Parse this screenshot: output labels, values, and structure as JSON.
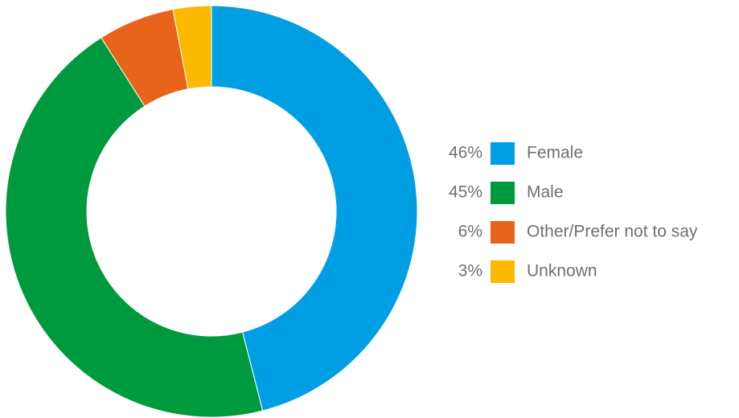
{
  "chart_data": {
    "type": "donut",
    "categories": [
      "Female",
      "Male",
      "Other/Prefer not to say",
      "Unknown"
    ],
    "values": [
      46,
      45,
      6,
      3
    ],
    "value_labels": [
      "46%",
      "45%",
      "6%",
      "3%"
    ],
    "colors": [
      "#009fe3",
      "#009a3e",
      "#e8641b",
      "#fbb900"
    ],
    "legend": "right"
  }
}
